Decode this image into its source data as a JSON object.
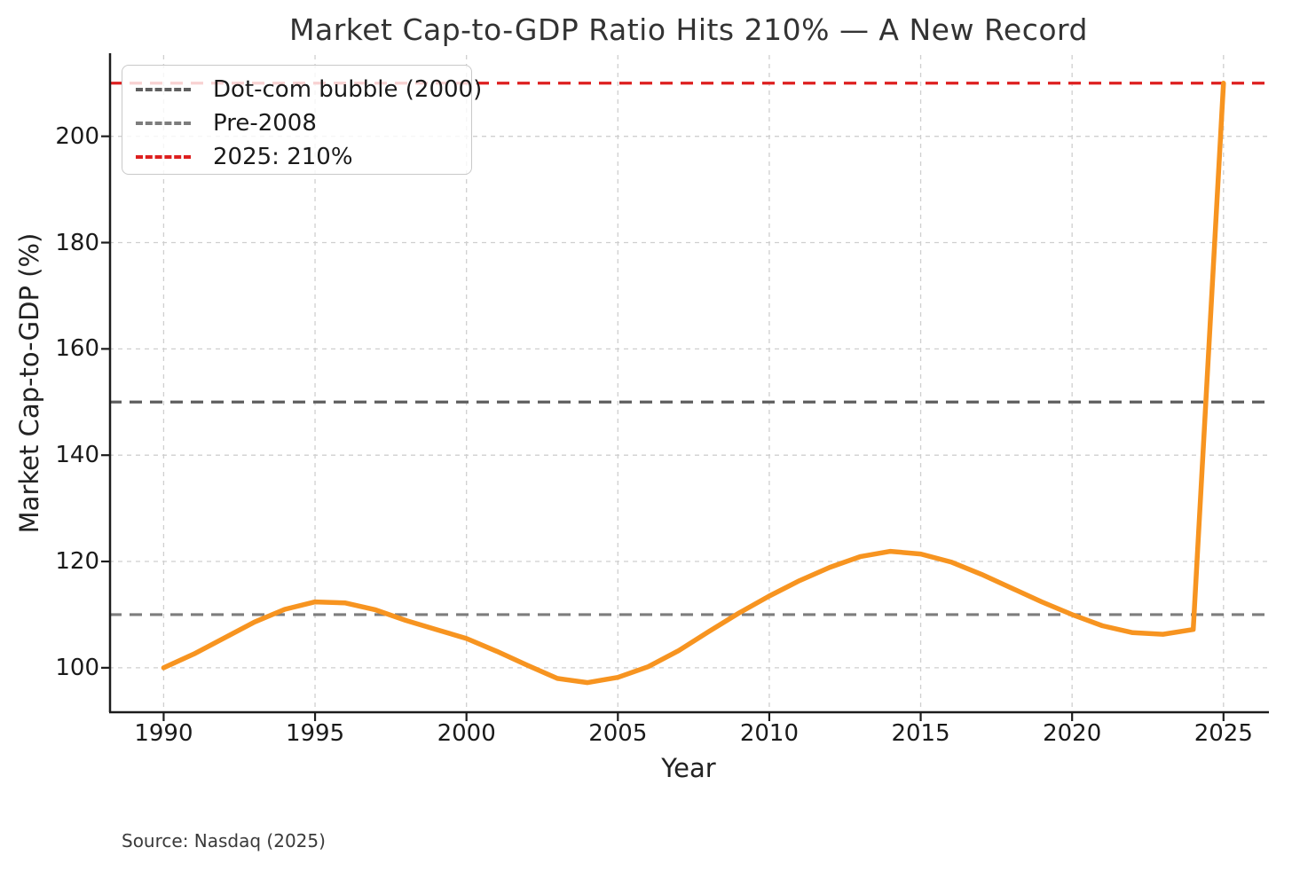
{
  "chart_data": {
    "type": "line",
    "title": "Market Cap-to-GDP Ratio Hits 210% — A New Record",
    "xlabel": "Year",
    "ylabel": "Market Cap-to-GDP (%)",
    "source": "Source: Nasdaq (2025)",
    "grid": true,
    "legend_position": "upper left",
    "xlim": [
      1988.2,
      2026.5
    ],
    "ylim": [
      91.8,
      215.3
    ],
    "x_ticks": [
      1990,
      1995,
      2000,
      2005,
      2010,
      2015,
      2020,
      2025
    ],
    "y_ticks": [
      100,
      120,
      140,
      160,
      180,
      200
    ],
    "series": [
      {
        "name": "Market Cap-to-GDP ratio",
        "color": "#f79420",
        "x": [
          1990,
          1991,
          1992,
          1993,
          1994,
          1995,
          1996,
          1997,
          1998,
          1999,
          2000,
          2001,
          2002,
          2003,
          2004,
          2005,
          2006,
          2007,
          2008,
          2009,
          2010,
          2011,
          2012,
          2013,
          2014,
          2015,
          2016,
          2017,
          2018,
          2019,
          2020,
          2021,
          2022,
          2023,
          2024,
          2025
        ],
        "values": [
          100.0,
          102.6,
          105.6,
          108.6,
          111.0,
          112.4,
          112.2,
          110.9,
          108.9,
          107.2,
          105.5,
          103.1,
          100.5,
          98.0,
          97.2,
          98.2,
          100.2,
          103.2,
          106.8,
          110.3,
          113.5,
          116.4,
          118.9,
          120.9,
          121.9,
          121.4,
          119.9,
          117.6,
          115.0,
          112.4,
          110.0,
          107.9,
          106.6,
          106.3,
          107.2,
          210.0
        ]
      }
    ],
    "reference_lines": [
      {
        "label": "Dot-com bubble (2000)",
        "value": 150,
        "color": "#5f5f5f",
        "style": "dashed"
      },
      {
        "label": "Pre-2008",
        "value": 110,
        "color": "#7d7d7d",
        "style": "dashed"
      },
      {
        "label": "2025: 210%",
        "value": 210,
        "color": "#dd1f1f",
        "style": "dashed"
      }
    ],
    "colors": {
      "series_line": "#f79420",
      "grid": "#cfcfcf",
      "spine": "#1c1c1c",
      "record_line": "#dd1f1f"
    }
  }
}
